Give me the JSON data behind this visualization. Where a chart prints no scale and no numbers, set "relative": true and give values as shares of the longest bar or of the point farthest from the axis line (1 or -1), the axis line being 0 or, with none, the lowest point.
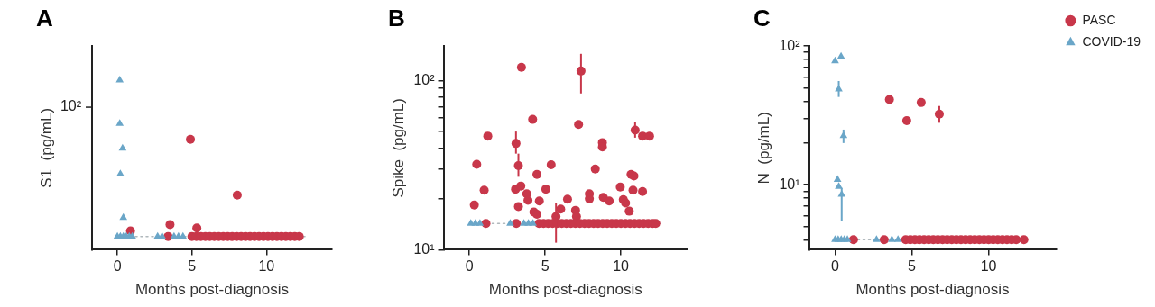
{
  "chart_data": [
    {
      "type": "scatter",
      "title": "A",
      "xlabel": "Months post-diagnosis",
      "ylabel": "S1  (pg/mL)",
      "relative": true,
      "grid": false,
      "legend": false,
      "xlim": [
        -1.7,
        14.4
      ],
      "xticks": [
        0,
        5,
        10
      ],
      "annotations": [
        "10²"
      ],
      "ref_lines": [
        {
          "axis": "y",
          "value": 0.078,
          "line_style": "dotted",
          "color": "#b0b8bc"
        }
      ],
      "series": [
        {
          "color": "#c8374a",
          "marker": "circle",
          "x": [
            0.88,
            3.53,
            4.9,
            5.33,
            8.04,
            3.4,
            5.0,
            5.3,
            5.6,
            5.9,
            6.2,
            6.5,
            6.8,
            7.1,
            7.4,
            7.7,
            8.0,
            8.3,
            8.6,
            8.9,
            9.2,
            9.5,
            9.8,
            10.1,
            10.4,
            10.7,
            11.0,
            11.3,
            11.6,
            11.9,
            12.2
          ],
          "values": [
            0.111,
            0.148,
            0.651,
            0.128,
            0.322,
            0.078,
            0.078,
            0.078,
            0.078,
            0.078,
            0.078,
            0.078,
            0.078,
            0.078,
            0.078,
            0.078,
            0.078,
            0.078,
            0.078,
            0.078,
            0.078,
            0.078,
            0.078,
            0.078,
            0.078,
            0.078,
            0.078,
            0.078,
            0.078,
            0.078,
            0.078
          ]
        },
        {
          "color": "#6aa6c8",
          "marker": "triangle",
          "x": [
            0.16,
            0.16,
            0.35,
            0.2,
            0.4,
            0,
            0.2,
            0.4,
            0.6,
            0.8,
            1.0,
            2.7,
            3.0,
            3.8,
            4.1,
            4.4
          ],
          "values": [
            1,
            0.743,
            0.598,
            0.447,
            0.189,
            0.078,
            0.078,
            0.078,
            0.078,
            0.078,
            0.078,
            0.078,
            0.078,
            0.078,
            0.078,
            0.078
          ]
        }
      ]
    },
    {
      "type": "scatter",
      "title": "B",
      "xlabel": "Months post-diagnosis",
      "ylabel": "Spike  (pg/mL)",
      "log": "y",
      "grid": false,
      "legend": false,
      "xlim": [
        -1.7,
        14.4
      ],
      "xticks": [
        0,
        5,
        10
      ],
      "ylim": [
        10,
        160
      ],
      "yticks": [
        {
          "value": 10,
          "label": "10¹"
        },
        {
          "value": 20,
          "label": null
        },
        {
          "value": 30,
          "label": null
        },
        {
          "value": 40,
          "label": null
        },
        {
          "value": 50,
          "label": null
        },
        {
          "value": 60,
          "label": null
        },
        {
          "value": 70,
          "label": null
        },
        {
          "value": 80,
          "label": null
        },
        {
          "value": 90,
          "label": null
        },
        {
          "value": 100,
          "label": "10²"
        }
      ],
      "ref_lines": [
        {
          "axis": "y",
          "value": 14.3,
          "line_style": "dotted",
          "color": "#b0b8bc"
        }
      ],
      "series": [
        {
          "color": "#c8374a",
          "marker": "circle",
          "x": [
            3.44,
            7.37,
            4.18,
            7.21,
            1.22,
            3.08,
            10.94,
            11.43,
            11.89,
            8.78,
            8.78,
            0.49,
            3.24,
            5.4,
            8.31,
            4.46,
            10.67,
            10.86,
            0.98,
            3.05,
            3.4,
            5.05,
            9.96,
            11.43,
            10.8,
            3.79,
            3.87,
            4.62,
            6.48,
            7.92,
            7.92,
            8.84,
            9.23,
            10.16,
            10.31,
            10.55,
            0.33,
            3.24,
            6.03,
            7.01,
            4.26,
            4.46,
            5.72,
            7.07,
            1.1,
            3.1,
            4.6,
            4.9,
            5.2,
            5.5,
            5.8,
            6.1,
            6.4,
            6.7,
            7.0,
            7.3,
            7.6,
            7.9,
            8.2,
            8.5,
            8.8,
            9.1,
            9.4,
            9.7,
            10.0,
            10.3,
            10.6,
            10.9,
            11.2,
            11.5,
            11.8,
            12.1,
            12.3
          ],
          "values": [
            120,
            114,
            59,
            55,
            47,
            42.5,
            51,
            47,
            47,
            43,
            40.5,
            32,
            31.4,
            31.8,
            30,
            27.9,
            27.9,
            27.3,
            22.5,
            22.8,
            23.8,
            22.8,
            23.5,
            22.1,
            22.5,
            21.4,
            19.6,
            19.4,
            19.9,
            21.4,
            20,
            20.4,
            19.4,
            19.8,
            18.9,
            16.9,
            18.4,
            18,
            17.4,
            17.1,
            16.7,
            16.2,
            15.7,
            15.7,
            14.3,
            14.3,
            14.3,
            14.3,
            14.3,
            14.3,
            14.3,
            14.3,
            14.3,
            14.3,
            14.3,
            14.3,
            14.3,
            14.3,
            14.3,
            14.3,
            14.3,
            14.3,
            14.3,
            14.3,
            14.3,
            14.3,
            14.3,
            14.3,
            14.3,
            14.3,
            14.3,
            14.3,
            14.3
          ],
          "errors": [
            null,
            [
              84,
              144
            ],
            null,
            null,
            null,
            [
              37,
              50
            ],
            [
              46,
              57
            ],
            null,
            null,
            null,
            null,
            null,
            [
              27,
              37
            ],
            null,
            null,
            null,
            null,
            null,
            null,
            null,
            null,
            null,
            null,
            null,
            null,
            null,
            null,
            null,
            null,
            null,
            null,
            null,
            null,
            null,
            null,
            null,
            null,
            null,
            null,
            null,
            null,
            null,
            [
              11,
              19
            ],
            null,
            null,
            null,
            null,
            null,
            null,
            null,
            null,
            null,
            null,
            null,
            null,
            null,
            null,
            null,
            null,
            null,
            null,
            null,
            null,
            null,
            null,
            null,
            null,
            null,
            null,
            null,
            null,
            null,
            null
          ]
        },
        {
          "color": "#6aa6c8",
          "marker": "triangle",
          "x": [
            0.1,
            0.4,
            0.7,
            2.7,
            3.6,
            3.9,
            4.2
          ],
          "values": [
            14.3,
            14.3,
            14.3,
            14.3,
            14.3,
            14.3,
            14.3
          ],
          "errors": [
            null,
            null,
            null,
            null,
            null,
            null,
            null
          ]
        }
      ]
    },
    {
      "type": "scatter",
      "title": "C",
      "xlabel": "Months post-diagnosis",
      "ylabel": "N  (pg/mL)",
      "log": "y",
      "grid": false,
      "legend": "top right",
      "xlim": [
        -1.7,
        14.4
      ],
      "xticks": [
        0,
        5,
        10
      ],
      "ylim": [
        3.4,
        100
      ],
      "yticks": [
        {
          "value": 4,
          "label": null
        },
        {
          "value": 5,
          "label": null
        },
        {
          "value": 6,
          "label": null
        },
        {
          "value": 7,
          "label": null
        },
        {
          "value": 8,
          "label": null
        },
        {
          "value": 9,
          "label": null
        },
        {
          "value": 10,
          "label": "10¹"
        },
        {
          "value": 20,
          "label": null
        },
        {
          "value": 30,
          "label": null
        },
        {
          "value": 40,
          "label": null
        },
        {
          "value": 50,
          "label": null
        },
        {
          "value": 60,
          "label": null
        },
        {
          "value": 70,
          "label": null
        },
        {
          "value": 80,
          "label": null
        },
        {
          "value": 90,
          "label": null
        },
        {
          "value": 100,
          "label": "10²"
        }
      ],
      "ref_lines": [
        {
          "axis": "y",
          "value": 4.02,
          "line_style": "dotted",
          "color": "#b0b8bc"
        }
      ],
      "series": [
        {
          "name": "PASC",
          "color": "#c8374a",
          "marker": "circle",
          "x": [
            3.54,
            4.67,
            5.61,
            6.79,
            1.2,
            3.2,
            4.6,
            4.9,
            5.2,
            5.5,
            5.8,
            6.1,
            6.4,
            6.7,
            7.0,
            7.3,
            7.6,
            7.9,
            8.2,
            8.5,
            8.8,
            9.1,
            9.4,
            9.7,
            10.0,
            10.3,
            10.6,
            10.9,
            11.2,
            11.5,
            11.8,
            12.3
          ],
          "values": [
            41.2,
            29,
            39.2,
            32.3,
            4.02,
            4.02,
            4.02,
            4.02,
            4.02,
            4.02,
            4.02,
            4.02,
            4.02,
            4.02,
            4.02,
            4.02,
            4.02,
            4.02,
            4.02,
            4.02,
            4.02,
            4.02,
            4.02,
            4.02,
            4.02,
            4.02,
            4.02,
            4.02,
            4.02,
            4.02,
            4.02,
            4.02
          ],
          "errors": [
            null,
            null,
            null,
            [
              28,
              37
            ],
            null,
            null,
            null,
            null,
            null,
            null,
            null,
            null,
            null,
            null,
            null,
            null,
            null,
            null,
            null,
            null,
            null,
            null,
            null,
            null,
            null,
            null,
            null,
            null,
            null,
            null,
            null,
            null
          ]
        },
        {
          "name": "COVID-19",
          "color": "#6aa6c8",
          "marker": "triangle",
          "x": [
            0,
            0.39,
            0.24,
            0.55,
            0.16,
            0.24,
            0.43,
            0,
            0.2,
            0.4,
            0.6,
            0.8,
            2.7,
            3.7,
            4.1
          ],
          "values": [
            78,
            84,
            49,
            22.6,
            10.9,
            9.7,
            8.5,
            4.02,
            4.02,
            4.02,
            4.02,
            4.02,
            4.02,
            4.02,
            4.02
          ],
          "errors": [
            null,
            null,
            [
              43,
              56
            ],
            [
              20,
              25
            ],
            null,
            null,
            [
              5.5,
              9.5
            ],
            null,
            null,
            null,
            null,
            null,
            null,
            null,
            null
          ]
        }
      ]
    }
  ]
}
